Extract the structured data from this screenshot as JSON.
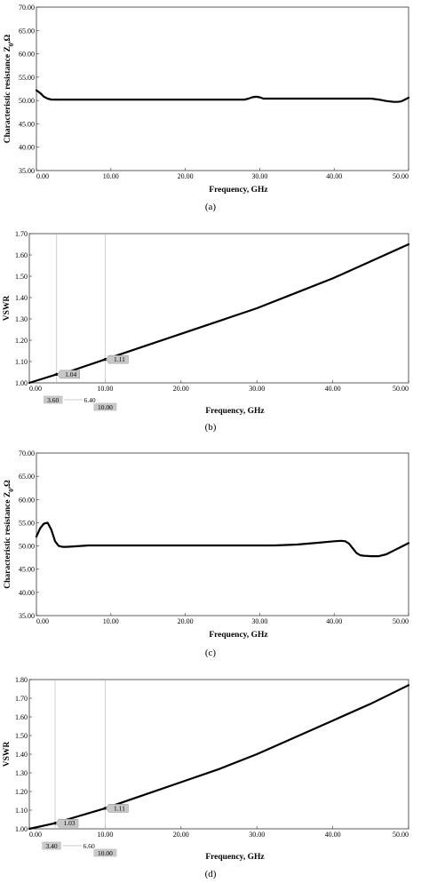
{
  "chart_data": [
    {
      "type": "line",
      "caption": "(a)",
      "xlabel": "Frequency, GHz",
      "ylabel_main": "Characteristic resistance Z",
      "ylabel_sub": "0",
      "ylabel_tail": ",Ω",
      "xlim": [
        0,
        50
      ],
      "ylim": [
        35,
        70
      ],
      "xticks": [
        "0.00",
        "10.00",
        "20.00",
        "30.00",
        "40.00",
        "50.00"
      ],
      "yticks": [
        "35.00",
        "40.00",
        "45.00",
        "50.00",
        "55.00",
        "60.00",
        "65.00",
        "70.00"
      ],
      "series": [
        {
          "x": [
            0,
            0.5,
            1,
            1.5,
            2,
            3,
            5,
            10,
            15,
            20,
            25,
            28,
            28.5,
            29,
            29.5,
            30,
            30.5,
            31,
            35,
            40,
            45,
            46,
            47,
            48,
            48.5,
            49,
            49.5,
            50
          ],
          "y": [
            52.2,
            51.6,
            50.8,
            50.4,
            50.2,
            50.2,
            50.2,
            50.2,
            50.2,
            50.2,
            50.2,
            50.2,
            50.4,
            50.7,
            50.8,
            50.7,
            50.4,
            50.4,
            50.4,
            50.4,
            50.4,
            50.2,
            49.9,
            49.7,
            49.7,
            49.8,
            50.2,
            50.6
          ]
        }
      ],
      "markers": []
    },
    {
      "type": "line",
      "caption": "(b)",
      "xlabel": "Frequency, GHz",
      "ylabel_main": "VSWR",
      "ylabel_sub": "",
      "ylabel_tail": "",
      "xlim": [
        0,
        50
      ],
      "ylim": [
        1.0,
        1.7
      ],
      "xticks": [
        "0.00",
        "10.00",
        "20.00",
        "30.00",
        "40.00",
        "50.00"
      ],
      "yticks": [
        "1.00",
        "1.10",
        "1.20",
        "1.30",
        "1.40",
        "1.50",
        "1.60",
        "1.70"
      ],
      "series": [
        {
          "x": [
            0,
            3.6,
            5,
            10,
            15,
            20,
            25,
            30,
            35,
            40,
            45,
            50
          ],
          "y": [
            1.0,
            1.04,
            1.05,
            1.11,
            1.17,
            1.23,
            1.29,
            1.35,
            1.42,
            1.49,
            1.57,
            1.65
          ]
        }
      ],
      "markers": [
        {
          "x": 3.6,
          "y": 1.04,
          "label": "1.04",
          "xlabel": "3.60",
          "xlabel_highlight": true
        },
        {
          "x": 10.0,
          "y": 1.11,
          "label": "1.11",
          "xlabel": "10.00",
          "xlabel_highlight": true
        }
      ],
      "delta_label": "6.40"
    },
    {
      "type": "line",
      "caption": "(c)",
      "xlabel": "Frequency, GHz",
      "ylabel_main": "Characteristic resistance Z",
      "ylabel_sub": "0",
      "ylabel_tail": ",Ω",
      "xlim": [
        0,
        50
      ],
      "ylim": [
        35,
        70
      ],
      "xticks": [
        "0.00",
        "10.00",
        "20.00",
        "30.00",
        "40.00",
        "50.00"
      ],
      "yticks": [
        "35.00",
        "40.00",
        "45.00",
        "50.00",
        "55.00",
        "60.00",
        "65.00",
        "70.00"
      ],
      "series": [
        {
          "x": [
            0,
            0.5,
            1,
            1.5,
            2,
            2.5,
            3,
            3.5,
            4,
            5,
            7,
            10,
            15,
            20,
            25,
            30,
            32,
            35,
            38,
            40,
            41,
            41.5,
            42,
            42.5,
            43,
            43.5,
            44,
            45,
            46,
            47,
            48,
            49,
            50
          ],
          "y": [
            52.0,
            53.8,
            54.8,
            55.0,
            53.5,
            51.0,
            50.0,
            49.8,
            49.8,
            49.9,
            50.1,
            50.1,
            50.1,
            50.1,
            50.1,
            50.1,
            50.1,
            50.3,
            50.7,
            51.0,
            51.1,
            51.0,
            50.5,
            49.5,
            48.5,
            48.0,
            47.9,
            47.8,
            47.8,
            48.2,
            49.0,
            49.8,
            50.6
          ]
        }
      ],
      "markers": []
    },
    {
      "type": "line",
      "caption": "(d)",
      "xlabel": "Frequency, GHz",
      "ylabel_main": "VSWR",
      "ylabel_sub": "",
      "ylabel_tail": "",
      "xlim": [
        0,
        50
      ],
      "ylim": [
        1.0,
        1.8
      ],
      "xticks": [
        "0.00",
        "10.00",
        "20.00",
        "30.00",
        "40.00",
        "50.00"
      ],
      "yticks": [
        "1.00",
        "1.10",
        "1.20",
        "1.30",
        "1.40",
        "1.50",
        "1.60",
        "1.70",
        "1.80"
      ],
      "series": [
        {
          "x": [
            0,
            3.4,
            5,
            10,
            15,
            20,
            25,
            30,
            35,
            40,
            45,
            50
          ],
          "y": [
            1.0,
            1.03,
            1.05,
            1.11,
            1.18,
            1.25,
            1.32,
            1.4,
            1.49,
            1.58,
            1.67,
            1.77
          ]
        }
      ],
      "markers": [
        {
          "x": 3.4,
          "y": 1.03,
          "label": "1.03",
          "xlabel": "3.40",
          "xlabel_highlight": true
        },
        {
          "x": 10.0,
          "y": 1.11,
          "label": "1.11",
          "xlabel": "10.00",
          "xlabel_highlight": true
        }
      ],
      "delta_label": "6.60"
    }
  ],
  "colors": {
    "line": "#000000",
    "axis": "#333333",
    "marker_box": "#c8c8c8",
    "marker_line": "#bbbbbb"
  }
}
